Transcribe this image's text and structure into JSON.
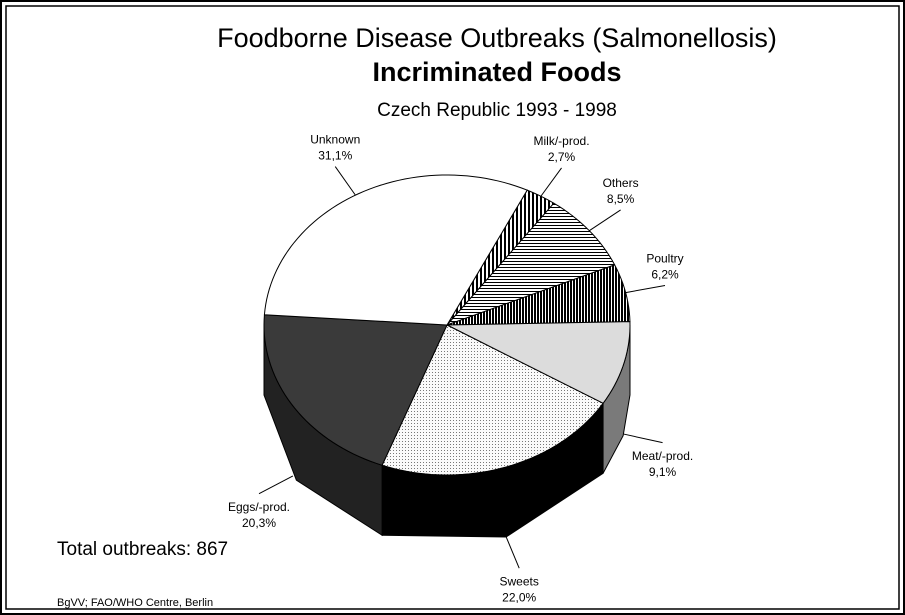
{
  "chart_data": {
    "type": "pie",
    "title": "Foodborne Disease Outbreaks (Salmonellosis)",
    "title_bold": "Incriminated Foods",
    "subtitle": "Czech Republic 1993 - 1998",
    "categories": [
      "Milk/-prod.",
      "Others",
      "Poultry",
      "Meat/-prod.",
      "Sweets",
      "Eggs/-prod.",
      "Unknown"
    ],
    "values": [
      2.7,
      8.5,
      6.2,
      9.1,
      22.0,
      20.3,
      31.1
    ],
    "value_labels": [
      "2,7%",
      "8,5%",
      "6,2%",
      "9,1%",
      "22,0%",
      "20,3%",
      "31,1%"
    ],
    "colors": [
      "#ffffff",
      "#ffffff",
      "#ffffff",
      "#dcdcdc",
      "#f2f2f2",
      "#3a3a3a",
      "#ffffff"
    ],
    "patterns": [
      "vstripe",
      "hstripe",
      "vdense",
      "none",
      "dots",
      "none",
      "none"
    ],
    "side_colors": [
      "#888888",
      "#888888",
      "#444444",
      "#7a7a7a",
      "#000000",
      "#222222",
      "#cccccc"
    ],
    "start_angle": 26,
    "annotations": [
      "Total outbreaks: 867",
      "BgVV; FAO/WHO Centre, Berlin"
    ]
  }
}
